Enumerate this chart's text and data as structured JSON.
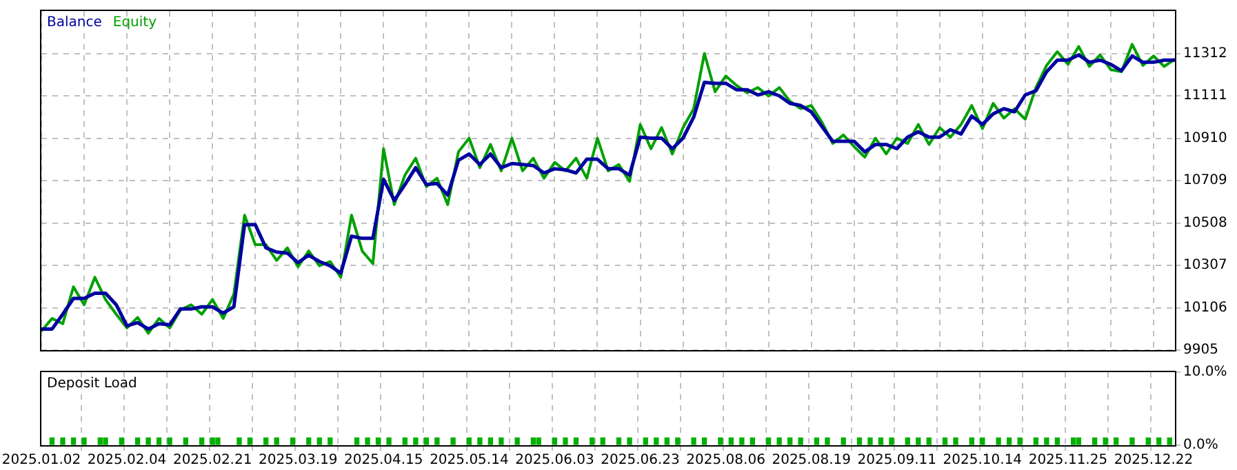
{
  "chart_data": [
    {
      "type": "line",
      "legend": "top left",
      "grid": true,
      "marker": "none",
      "tick_labels": "y",
      "categories": [
        "2025.01.02",
        null,
        null,
        null,
        null,
        null,
        null,
        null,
        "2025.02.04",
        null,
        null,
        null,
        null,
        null,
        null,
        null,
        "2025.02.21",
        null,
        null,
        null,
        null,
        null,
        null,
        null,
        "2025.03.19",
        null,
        null,
        null,
        null,
        null,
        null,
        null,
        "2025.04.15",
        null,
        null,
        null,
        null,
        null,
        null,
        null,
        "2025.05.14",
        null,
        null,
        null,
        null,
        null,
        null,
        null,
        "2025.06.03",
        null,
        null,
        null,
        null,
        null,
        null,
        null,
        "2025.06.23",
        null,
        null,
        null,
        null,
        null,
        null,
        null,
        "2025.08.06",
        null,
        null,
        null,
        null,
        null,
        null,
        null,
        "2025.08.19",
        null,
        null,
        null,
        null,
        null,
        null,
        null,
        "2025.09.11",
        null,
        null,
        null,
        null,
        null,
        null,
        null,
        "2025.10.14",
        null,
        null,
        null,
        null,
        null,
        null,
        null,
        "2025.11.25",
        null,
        null,
        null,
        null,
        null,
        null,
        null,
        "2025.12.22",
        null,
        null
      ],
      "ylim": [
        9905,
        11513
      ],
      "yticks": [
        9905,
        10106,
        10307,
        10508,
        10709,
        10910,
        11111,
        11312
      ],
      "series": [
        {
          "name": "Balance",
          "color": "#0000a0",
          "values": [
            10005,
            10005,
            10075,
            10150,
            10150,
            10175,
            10175,
            10120,
            10020,
            10035,
            10005,
            10030,
            10025,
            10100,
            10100,
            10110,
            10110,
            10080,
            10110,
            10500,
            10500,
            10390,
            10370,
            10365,
            10320,
            10355,
            10325,
            10305,
            10270,
            10445,
            10435,
            10435,
            10715,
            10615,
            10690,
            10770,
            10690,
            10695,
            10640,
            10805,
            10835,
            10785,
            10835,
            10770,
            10790,
            10785,
            10780,
            10745,
            10765,
            10760,
            10745,
            10810,
            10810,
            10765,
            10765,
            10735,
            10915,
            10910,
            10910,
            10860,
            10910,
            11010,
            11175,
            11170,
            11170,
            11140,
            11140,
            11115,
            11130,
            11111,
            11075,
            11065,
            11035,
            10965,
            10895,
            10895,
            10895,
            10845,
            10880,
            10880,
            10860,
            10915,
            10940,
            10915,
            10915,
            10950,
            10930,
            11015,
            10975,
            11025,
            11050,
            11035,
            11115,
            11135,
            11225,
            11280,
            11280,
            11305,
            11270,
            11280,
            11260,
            11230,
            11300,
            11270,
            11270,
            11280,
            11280
          ]
        },
        {
          "name": "Equity",
          "color": "#00a000",
          "values": [
            9995,
            10055,
            10030,
            10205,
            10120,
            10250,
            10145,
            10075,
            10010,
            10060,
            9985,
            10055,
            10010,
            10095,
            10120,
            10075,
            10145,
            10055,
            10170,
            10545,
            10405,
            10405,
            10330,
            10390,
            10300,
            10375,
            10305,
            10325,
            10250,
            10545,
            10375,
            10315,
            10860,
            10595,
            10735,
            10815,
            10680,
            10720,
            10595,
            10845,
            10910,
            10770,
            10880,
            10755,
            10910,
            10755,
            10815,
            10720,
            10795,
            10755,
            10815,
            10720,
            10910,
            10755,
            10785,
            10705,
            10975,
            10860,
            10960,
            10835,
            10960,
            11050,
            11312,
            11130,
            11205,
            11160,
            11125,
            11150,
            11110,
            11150,
            11085,
            11050,
            11065,
            10985,
            10885,
            10925,
            10870,
            10820,
            10910,
            10835,
            10910,
            10885,
            10975,
            10880,
            10960,
            10915,
            10975,
            11065,
            10955,
            11075,
            11005,
            11050,
            11000,
            11150,
            11255,
            11320,
            11260,
            11345,
            11250,
            11305,
            11235,
            11225,
            11355,
            11255,
            11300,
            11250,
            11285
          ]
        }
      ]
    },
    {
      "type": "bar",
      "title": "Deposit Load",
      "grid": "x",
      "color": "#00b000",
      "ylim": [
        0,
        10
      ],
      "yticks": [
        {
          "value": 0,
          "label": "0.0%"
        },
        {
          "value": 10,
          "label": "10.0%"
        }
      ],
      "categories": [
        "2025.01.02",
        null,
        null,
        null,
        null,
        null,
        null,
        null,
        null,
        null,
        null,
        null,
        null,
        null,
        null,
        null,
        "2025.02.04",
        null,
        null,
        null,
        null,
        null,
        null,
        null,
        null,
        null,
        null,
        null,
        null,
        null,
        null,
        null,
        "2025.02.21",
        null,
        null,
        null,
        null,
        null,
        null,
        null,
        null,
        null,
        null,
        null,
        null,
        null,
        null,
        null,
        "2025.03.19",
        null,
        null,
        null,
        null,
        null,
        null,
        null,
        null,
        null,
        null,
        null,
        null,
        null,
        null,
        null,
        "2025.04.15",
        null,
        null,
        null,
        null,
        null,
        null,
        null,
        null,
        null,
        null,
        null,
        null,
        null,
        null,
        null,
        "2025.05.14",
        null,
        null,
        null,
        null,
        null,
        null,
        null,
        null,
        null,
        null,
        null,
        null,
        null,
        null,
        null,
        "2025.06.03",
        null,
        null,
        null,
        null,
        null,
        null,
        null,
        null,
        null,
        null,
        null,
        null,
        null,
        null,
        null,
        "2025.06.23",
        null,
        null,
        null,
        null,
        null,
        null,
        null,
        null,
        null,
        null,
        null,
        null,
        null,
        null,
        null,
        "2025.08.06",
        null,
        null,
        null,
        null,
        null,
        null,
        null,
        null,
        null,
        null,
        null,
        null,
        null,
        null,
        null,
        "2025.08.19",
        null,
        null,
        null,
        null,
        null,
        null,
        null,
        null,
        null,
        null,
        null,
        null,
        null,
        null,
        null,
        "2025.09.11",
        null,
        null,
        null,
        null,
        null,
        null,
        null,
        null,
        null,
        null,
        null,
        null,
        null,
        null,
        null,
        "2025.10.14",
        null,
        null,
        null,
        null,
        null,
        null,
        null,
        null,
        null,
        null,
        null,
        null,
        null,
        null,
        null,
        "2025.11.25",
        null,
        null,
        null,
        null,
        null,
        null,
        null,
        null,
        null,
        null,
        null,
        null,
        null,
        null,
        null,
        "2025.12.22",
        null,
        null,
        null,
        null
      ],
      "values": [
        null,
        null,
        1,
        null,
        1,
        null,
        1,
        null,
        1,
        null,
        null,
        1,
        1,
        null,
        null,
        1,
        null,
        null,
        1,
        null,
        1,
        null,
        1,
        null,
        1,
        null,
        null,
        1,
        null,
        null,
        1,
        null,
        1,
        1,
        null,
        null,
        null,
        1,
        null,
        1,
        null,
        null,
        1,
        null,
        1,
        null,
        null,
        1,
        null,
        null,
        1,
        null,
        1,
        null,
        1,
        null,
        null,
        null,
        null,
        1,
        null,
        1,
        null,
        1,
        null,
        1,
        null,
        null,
        1,
        null,
        1,
        null,
        1,
        null,
        1,
        null,
        null,
        1,
        null,
        null,
        1,
        null,
        1,
        null,
        1,
        null,
        1,
        null,
        null,
        1,
        null,
        null,
        1,
        1,
        null,
        null,
        1,
        null,
        1,
        null,
        1,
        null,
        null,
        1,
        null,
        1,
        null,
        null,
        1,
        null,
        1,
        null,
        null,
        1,
        null,
        1,
        null,
        1,
        null,
        1,
        null,
        null,
        1,
        null,
        1,
        null,
        null,
        1,
        null,
        1,
        null,
        1,
        null,
        1,
        null,
        null,
        1,
        null,
        1,
        null,
        1,
        null,
        1,
        null,
        null,
        1,
        null,
        1,
        null,
        null,
        1,
        null,
        null,
        1,
        null,
        1,
        null,
        1,
        null,
        1,
        null,
        null,
        1,
        null,
        1,
        null,
        1,
        null,
        null,
        1,
        null,
        1,
        null,
        null,
        1,
        null,
        1,
        null,
        null,
        1,
        null,
        1,
        null,
        1,
        null,
        null,
        1,
        null,
        1,
        null,
        1,
        null,
        null,
        1,
        1,
        null,
        null,
        1,
        null,
        1,
        null,
        1,
        null,
        null,
        1,
        null,
        null,
        1,
        null,
        1,
        null,
        1,
        null
      ]
    }
  ]
}
